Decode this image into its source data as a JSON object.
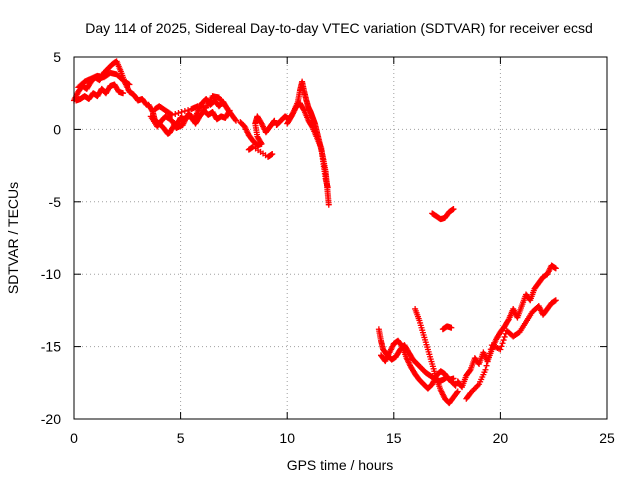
{
  "chart_data": {
    "type": "scatter",
    "title": "Day 114 of 2025, Sidereal Day-to-day VTEC variation (SDTVAR) for receiver ecsd",
    "xlabel": "GPS time / hours",
    "ylabel": "SDTVAR / TECUs",
    "xlim": [
      0,
      25
    ],
    "ylim": [
      -20,
      5
    ],
    "xticks": [
      0,
      5,
      10,
      15,
      20,
      25
    ],
    "yticks": [
      5,
      0,
      -5,
      -10,
      -15,
      -20
    ],
    "grid": true,
    "marker": "plus",
    "series": [
      {
        "name": "SDTVAR",
        "color": "#ff0000",
        "segments": [
          [
            [
              0.0,
              2.0
            ],
            [
              0.2,
              2.6
            ],
            [
              0.4,
              3.0
            ],
            [
              0.6,
              2.8
            ],
            [
              0.8,
              3.3
            ],
            [
              1.0,
              3.6
            ],
            [
              1.2,
              3.4
            ],
            [
              1.4,
              3.9
            ],
            [
              1.6,
              4.2
            ],
            [
              1.8,
              4.5
            ],
            [
              2.0,
              4.7
            ],
            [
              2.2,
              4.0
            ],
            [
              2.4,
              3.2
            ],
            [
              2.6,
              2.6
            ],
            [
              2.8,
              2.4
            ],
            [
              3.0,
              2.0
            ],
            [
              3.2,
              2.1
            ],
            [
              3.4,
              1.7
            ]
          ],
          [
            [
              0.1,
              2.0
            ],
            [
              0.3,
              2.1
            ],
            [
              0.5,
              2.3
            ],
            [
              0.7,
              2.1
            ],
            [
              0.9,
              2.5
            ],
            [
              1.1,
              2.3
            ],
            [
              1.3,
              2.8
            ],
            [
              1.5,
              2.5
            ],
            [
              1.7,
              3.0
            ],
            [
              1.9,
              3.1
            ],
            [
              2.1,
              2.6
            ],
            [
              2.3,
              2.5
            ]
          ],
          [
            [
              0.2,
              2.9
            ],
            [
              0.5,
              3.3
            ],
            [
              0.8,
              3.5
            ],
            [
              1.1,
              3.7
            ],
            [
              1.4,
              3.6
            ],
            [
              1.7,
              3.9
            ],
            [
              2.0,
              3.8
            ],
            [
              2.3,
              3.4
            ],
            [
              2.6,
              3.1
            ]
          ],
          [
            [
              3.5,
              1.7
            ],
            [
              3.7,
              1.2
            ],
            [
              3.8,
              0.6
            ],
            [
              4.0,
              0.4
            ],
            [
              4.2,
              0.1
            ],
            [
              4.4,
              -0.3
            ],
            [
              4.5,
              -0.2
            ],
            [
              4.7,
              0.3
            ],
            [
              4.9,
              0.5
            ],
            [
              5.0,
              0.8
            ],
            [
              5.2,
              0.7
            ],
            [
              5.4,
              1.1
            ],
            [
              5.6,
              0.6
            ],
            [
              5.8,
              1.2
            ],
            [
              6.0,
              1.8
            ],
            [
              6.2,
              2.1
            ],
            [
              6.4,
              1.7
            ],
            [
              6.6,
              2.0
            ],
            [
              6.8,
              1.6
            ],
            [
              7.0,
              1.9
            ],
            [
              7.2,
              1.4
            ],
            [
              7.4,
              1.0
            ],
            [
              7.6,
              0.6
            ]
          ],
          [
            [
              3.6,
              0.9
            ],
            [
              3.9,
              0.2
            ],
            [
              4.1,
              0.6
            ],
            [
              4.3,
              0.9
            ],
            [
              4.6,
              0.6
            ],
            [
              4.8,
              0.1
            ],
            [
              5.1,
              0.3
            ],
            [
              5.3,
              0.9
            ],
            [
              5.5,
              0.9
            ],
            [
              5.7,
              0.4
            ],
            [
              5.9,
              0.9
            ],
            [
              6.1,
              1.3
            ],
            [
              6.3,
              1.0
            ],
            [
              6.5,
              1.2
            ],
            [
              6.7,
              0.7
            ],
            [
              6.9,
              0.9
            ],
            [
              7.1,
              0.8
            ],
            [
              7.3,
              1.3
            ]
          ],
          [
            [
              3.8,
              1.4
            ],
            [
              4.0,
              1.6
            ],
            [
              4.3,
              1.3
            ],
            [
              4.6,
              1.0
            ],
            [
              5.5,
              1.4
            ],
            [
              5.8,
              1.6
            ],
            [
              6.2,
              1.5
            ],
            [
              6.5,
              2.3
            ],
            [
              6.8,
              2.2
            ],
            [
              7.1,
              1.6
            ]
          ],
          [
            [
              7.8,
              0.5
            ],
            [
              8.0,
              0.2
            ],
            [
              8.2,
              -0.4
            ],
            [
              8.4,
              -0.8
            ],
            [
              8.6,
              -1.1
            ],
            [
              8.8,
              -1.0
            ],
            [
              8.6,
              -0.5
            ],
            [
              8.5,
              0.4
            ],
            [
              8.6,
              0.9
            ],
            [
              8.8,
              0.4
            ],
            [
              9.0,
              -0.2
            ],
            [
              9.2,
              0.2
            ],
            [
              9.4,
              0.6
            ]
          ],
          [
            [
              8.2,
              -1.4
            ],
            [
              8.4,
              -1.2
            ],
            [
              9.1,
              -1.9
            ],
            [
              9.3,
              -1.7
            ]
          ],
          [
            [
              9.5,
              0.3
            ],
            [
              9.7,
              0.6
            ],
            [
              9.9,
              0.9
            ],
            [
              10.1,
              0.7
            ],
            [
              10.3,
              1.2
            ],
            [
              10.5,
              1.9
            ],
            [
              10.6,
              2.7
            ],
            [
              10.7,
              3.3
            ],
            [
              10.8,
              2.6
            ],
            [
              10.9,
              2.0
            ],
            [
              11.0,
              1.5
            ],
            [
              11.1,
              1.2
            ],
            [
              11.2,
              0.8
            ],
            [
              11.3,
              0.4
            ],
            [
              11.4,
              -0.2
            ],
            [
              11.5,
              -0.8
            ],
            [
              11.6,
              -1.4
            ],
            [
              11.7,
              -2.1
            ],
            [
              11.8,
              -2.9
            ],
            [
              11.85,
              -3.6
            ],
            [
              11.9,
              -4.4
            ],
            [
              11.95,
              -5.2
            ]
          ],
          [
            [
              10.0,
              0.4
            ],
            [
              10.2,
              0.9
            ],
            [
              10.4,
              1.5
            ],
            [
              10.6,
              1.8
            ],
            [
              10.8,
              1.3
            ],
            [
              11.0,
              0.6
            ],
            [
              11.2,
              0.1
            ],
            [
              11.4,
              -0.6
            ],
            [
              11.6,
              -1.3
            ],
            [
              11.7,
              -2.4
            ],
            [
              11.8,
              -3.4
            ],
            [
              11.9,
              -4.0
            ]
          ],
          [
            [
              16.8,
              -5.8
            ],
            [
              17.0,
              -6.0
            ],
            [
              17.2,
              -6.2
            ],
            [
              17.4,
              -6.1
            ],
            [
              17.6,
              -5.7
            ],
            [
              17.8,
              -5.5
            ]
          ],
          [
            [
              14.3,
              -13.8
            ],
            [
              14.4,
              -14.6
            ],
            [
              14.5,
              -15.2
            ],
            [
              14.7,
              -15.6
            ],
            [
              14.9,
              -15.9
            ],
            [
              15.1,
              -15.7
            ],
            [
              15.3,
              -15.2
            ],
            [
              15.5,
              -14.9
            ],
            [
              15.7,
              -15.4
            ],
            [
              15.9,
              -15.9
            ],
            [
              16.1,
              -16.2
            ],
            [
              16.3,
              -16.5
            ],
            [
              16.5,
              -16.8
            ],
            [
              16.7,
              -17.0
            ],
            [
              16.9,
              -17.2
            ],
            [
              17.1,
              -17.4
            ],
            [
              17.3,
              -17.3
            ],
            [
              17.5,
              -17.1
            ],
            [
              17.7,
              -17.4
            ],
            [
              17.9,
              -17.7
            ]
          ],
          [
            [
              14.4,
              -15.6
            ],
            [
              14.6,
              -16.0
            ],
            [
              14.8,
              -15.4
            ],
            [
              15.0,
              -14.8
            ],
            [
              15.2,
              -14.6
            ],
            [
              15.4,
              -15.0
            ],
            [
              15.6,
              -15.8
            ],
            [
              15.8,
              -16.4
            ],
            [
              16.0,
              -16.9
            ],
            [
              16.2,
              -17.3
            ],
            [
              16.4,
              -17.6
            ],
            [
              16.6,
              -17.9
            ],
            [
              16.8,
              -17.6
            ],
            [
              17.0,
              -17.0
            ],
            [
              17.2,
              -16.7
            ],
            [
              17.4,
              -16.9
            ],
            [
              17.6,
              -17.3
            ],
            [
              17.8,
              -17.2
            ]
          ],
          [
            [
              16.0,
              -12.4
            ],
            [
              16.2,
              -13.2
            ],
            [
              16.4,
              -14.2
            ],
            [
              16.6,
              -15.2
            ],
            [
              16.8,
              -16.2
            ],
            [
              17.0,
              -17.2
            ],
            [
              17.2,
              -18.0
            ],
            [
              17.4,
              -18.6
            ],
            [
              17.6,
              -18.9
            ],
            [
              17.8,
              -18.5
            ],
            [
              18.0,
              -18.1
            ]
          ],
          [
            [
              17.3,
              -13.8
            ],
            [
              17.5,
              -13.6
            ],
            [
              17.7,
              -13.7
            ]
          ],
          [
            [
              18.0,
              -17.4
            ],
            [
              18.2,
              -17.8
            ],
            [
              18.4,
              -17.0
            ],
            [
              18.6,
              -16.6
            ],
            [
              18.8,
              -15.8
            ],
            [
              19.0,
              -16.2
            ],
            [
              19.2,
              -15.4
            ],
            [
              19.4,
              -16.0
            ],
            [
              19.6,
              -15.2
            ],
            [
              19.8,
              -14.5
            ],
            [
              20.0,
              -14.0
            ],
            [
              20.2,
              -13.6
            ],
            [
              20.4,
              -13.1
            ],
            [
              20.6,
              -12.4
            ],
            [
              20.8,
              -13.0
            ],
            [
              21.0,
              -12.2
            ],
            [
              21.2,
              -11.4
            ],
            [
              21.4,
              -11.8
            ],
            [
              21.6,
              -11.0
            ],
            [
              21.8,
              -10.6
            ],
            [
              22.0,
              -10.2
            ],
            [
              22.2,
              -10.0
            ],
            [
              22.4,
              -9.4
            ],
            [
              22.6,
              -9.6
            ]
          ],
          [
            [
              18.4,
              -18.6
            ],
            [
              18.6,
              -18.2
            ],
            [
              19.0,
              -17.6
            ],
            [
              19.3,
              -16.6
            ],
            [
              19.6,
              -14.9
            ],
            [
              20.0,
              -15.2
            ],
            [
              20.3,
              -13.9
            ],
            [
              20.6,
              -14.3
            ],
            [
              20.9,
              -14.0
            ],
            [
              21.2,
              -13.3
            ],
            [
              21.5,
              -12.6
            ],
            [
              21.8,
              -12.2
            ],
            [
              22.0,
              -12.8
            ],
            [
              22.2,
              -12.4
            ],
            [
              22.4,
              -12.0
            ],
            [
              22.6,
              -11.8
            ]
          ]
        ]
      }
    ]
  }
}
